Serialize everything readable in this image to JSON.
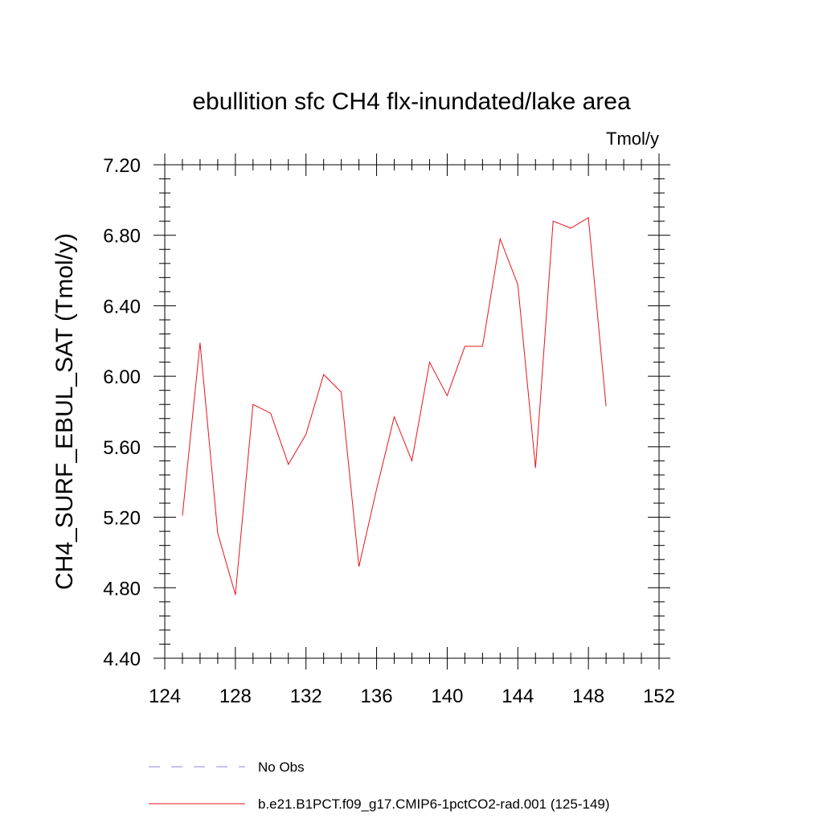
{
  "chart_data": {
    "type": "line",
    "title": "ebullition sfc CH4 flx-inundated/lake area",
    "units_label": "Tmol/y",
    "ylabel": "CH4_SURF_EBUL_SAT  (Tmol/y)",
    "xlabel": "",
    "xlim": [
      124,
      152
    ],
    "ylim": [
      4.4,
      7.2
    ],
    "x_ticks": [
      "124",
      "128",
      "132",
      "136",
      "140",
      "144",
      "148",
      "152"
    ],
    "y_ticks": [
      "4.40",
      "4.80",
      "5.20",
      "5.60",
      "6.00",
      "6.40",
      "6.80",
      "7.20"
    ],
    "grid": false,
    "series": [
      {
        "name": "b.e21.B1PCT.f09_g17.CMIP6-1pctCO2-rad.001 (125-149)",
        "color": "#e8141c",
        "style": "solid",
        "x": [
          125,
          126,
          127,
          128,
          129,
          130,
          131,
          132,
          133,
          134,
          135,
          136,
          137,
          138,
          139,
          140,
          141,
          142,
          143,
          144,
          145,
          146,
          147,
          148,
          149
        ],
        "values": [
          5.21,
          6.19,
          5.11,
          4.76,
          5.84,
          5.79,
          5.5,
          5.67,
          6.01,
          5.91,
          4.92,
          5.36,
          5.77,
          5.52,
          6.08,
          5.89,
          6.17,
          6.17,
          6.78,
          6.52,
          5.48,
          6.88,
          6.84,
          6.9,
          5.83
        ]
      },
      {
        "name": "No Obs",
        "color": "#8a86d8",
        "style": "dashed",
        "x": [],
        "values": []
      }
    ],
    "legend_position": "bottom"
  }
}
